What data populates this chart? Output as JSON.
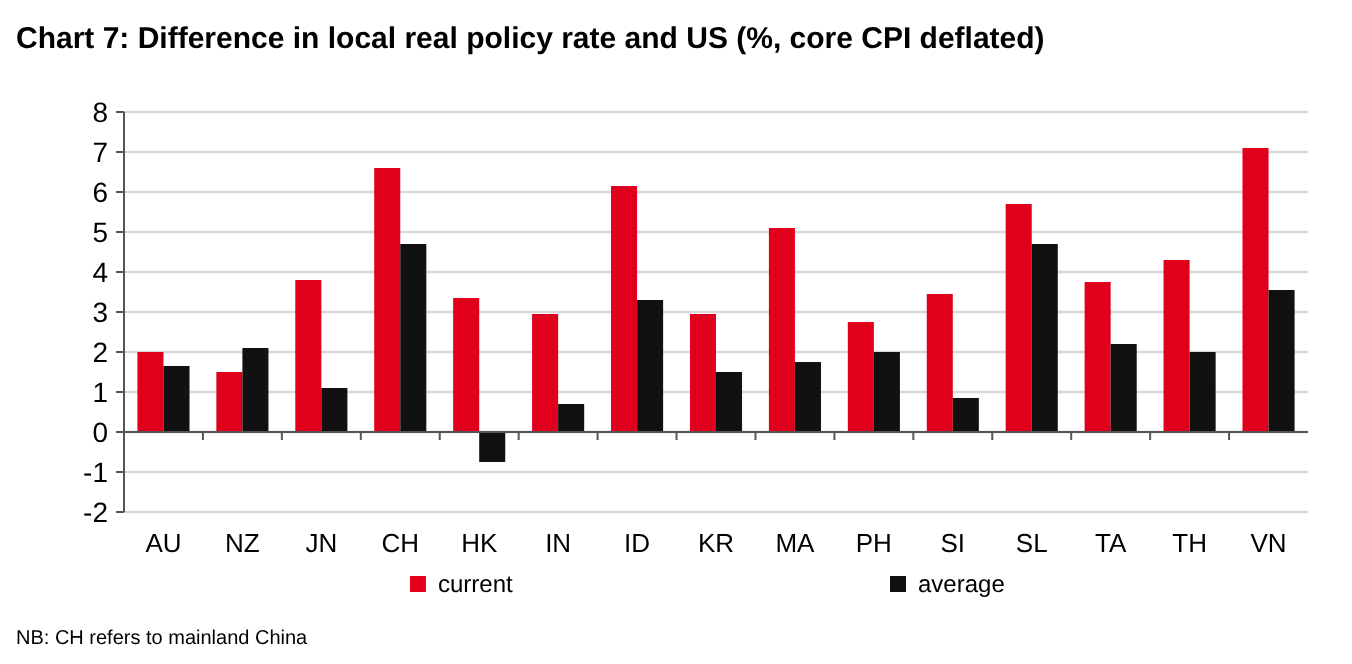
{
  "chart_data": {
    "type": "bar",
    "title": "Chart 7: Difference in local real policy rate and US (%, core CPI deflated)",
    "categories": [
      "AU",
      "NZ",
      "JN",
      "CH",
      "HK",
      "IN",
      "ID",
      "KR",
      "MA",
      "PH",
      "SI",
      "SL",
      "TA",
      "TH",
      "VN"
    ],
    "series": [
      {
        "name": "current",
        "color": "#e0001b",
        "values": [
          2.0,
          1.5,
          3.8,
          6.6,
          3.35,
          2.95,
          6.15,
          2.95,
          5.1,
          2.75,
          3.45,
          5.7,
          3.75,
          4.3,
          7.1
        ]
      },
      {
        "name": "average",
        "color": "#111111",
        "values": [
          1.65,
          2.1,
          1.1,
          4.7,
          -0.75,
          0.7,
          3.3,
          1.5,
          1.75,
          2.0,
          0.85,
          4.7,
          2.2,
          2.0,
          3.55
        ]
      }
    ],
    "ylim": [
      -2,
      8
    ],
    "yticks": [
      -2,
      -1,
      0,
      1,
      2,
      3,
      4,
      5,
      6,
      7,
      8
    ],
    "grid": "y",
    "legend": "bottom",
    "annotations": [
      "NB: CH refers to mainland China"
    ]
  }
}
